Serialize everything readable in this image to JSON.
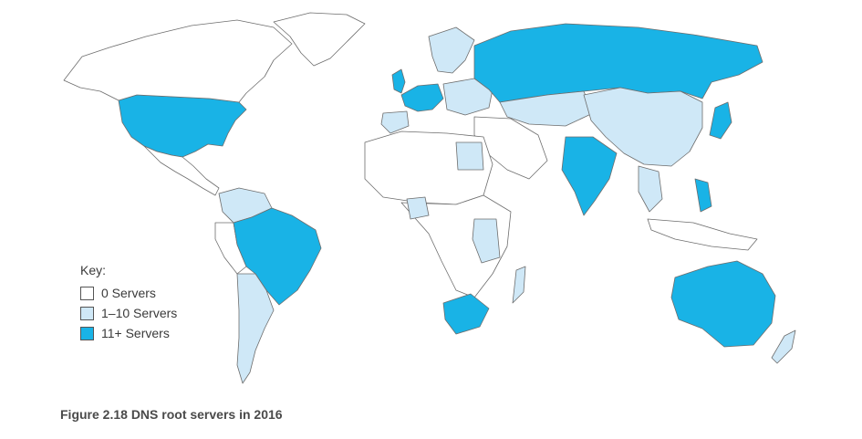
{
  "colors": {
    "zero": "#ffffff",
    "low": "#cfe8f7",
    "high": "#19b3e6",
    "border": "#6d6d6d"
  },
  "legend": {
    "title": "Key:",
    "items": [
      {
        "label": "0 Servers",
        "class": "zero"
      },
      {
        "label": "1–10 Servers",
        "class": "low"
      },
      {
        "label": "11+ Servers",
        "class": "high"
      }
    ]
  },
  "caption": {
    "label": "Figure 2.18",
    "text": "DNS root servers in 2016"
  }
}
